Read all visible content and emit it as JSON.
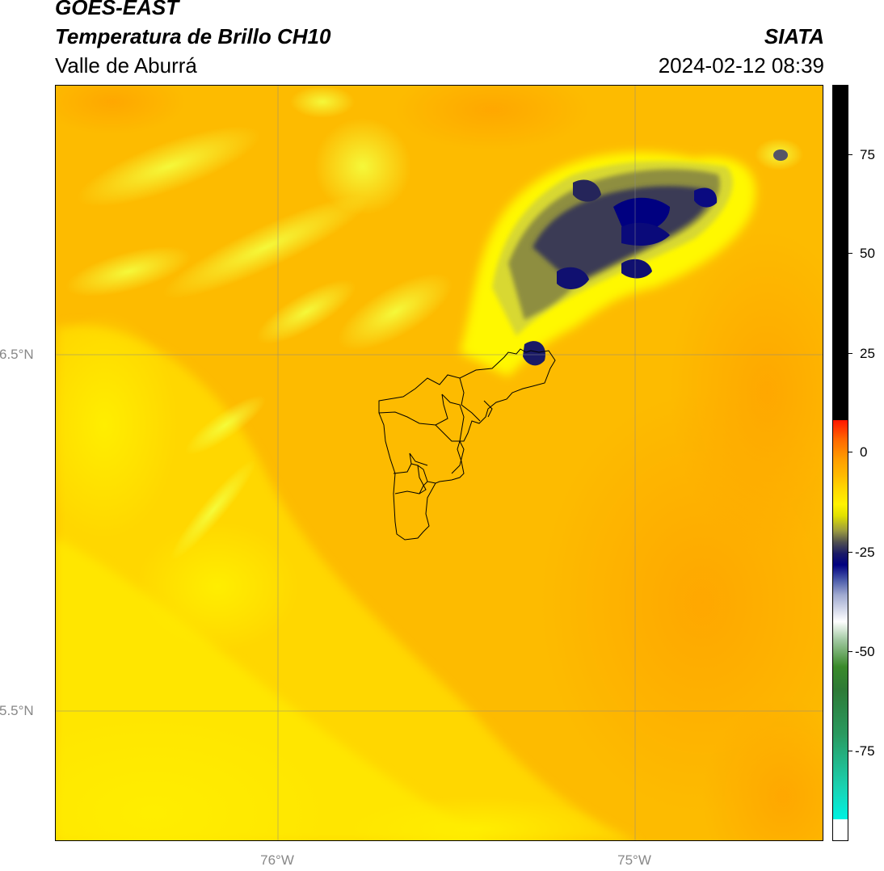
{
  "header": {
    "satellite": "GOES-EAST",
    "product": "Temperatura de Brillo CH10",
    "agency": "SIATA",
    "region": "Valle de Aburrá",
    "datetime": "2024-02-12 08:39"
  },
  "map": {
    "lat_labels": [
      "6.5°N",
      "5.5°N"
    ],
    "lon_labels": [
      "76°W",
      "75°W"
    ],
    "features": [
      "brightness-temperature-field",
      "cloud-cluster",
      "municipal-boundaries",
      "graticule"
    ]
  },
  "colorbar": {
    "tick_labels": [
      "75",
      "50",
      "25",
      "0",
      "-25",
      "-50",
      "-75"
    ],
    "colors": {
      "warm_limit": "#000000",
      "hot": "#ff1500",
      "orange": "#ff9d00",
      "yellow": "#fff200",
      "olive": "#9a9a40",
      "navy": "#000080",
      "white": "#ffffff",
      "green": "#3a8a2a",
      "cyan": "#00f0e0"
    }
  }
}
